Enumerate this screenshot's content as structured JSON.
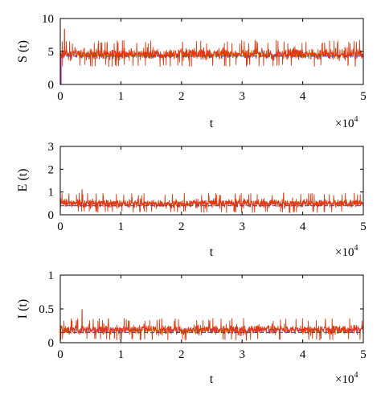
{
  "chart_data": [
    {
      "type": "line",
      "ylabel": "S (t)",
      "xlabel": "t",
      "x_multiplier": "×10",
      "x_multiplier_exp": "4",
      "xlim": [
        0,
        50000
      ],
      "ylim": [
        0,
        10
      ],
      "xticks": [
        0,
        1,
        2,
        3,
        4,
        5
      ],
      "yticks": [
        0,
        5,
        10
      ],
      "series": [
        {
          "style": "stochastic-noise",
          "mean": 4.4,
          "typical_min": 3.0,
          "typical_max": 6.2,
          "peak": 8.4,
          "peak_at": 700,
          "color": "#e03a12"
        },
        {
          "style": "dashed",
          "value": 4.3,
          "color": "#3a4fd6"
        }
      ],
      "start_marker": {
        "x": 0,
        "value_range": [
          0,
          4.3
        ],
        "color": "#cc33cc"
      }
    },
    {
      "type": "line",
      "ylabel": "E (t)",
      "xlabel": "t",
      "x_multiplier": "×10",
      "x_multiplier_exp": "4",
      "xlim": [
        0,
        50000
      ],
      "ylim": [
        0,
        3
      ],
      "xticks": [
        0,
        1,
        2,
        3,
        4,
        5
      ],
      "yticks": [
        0,
        1,
        2,
        3
      ],
      "series": [
        {
          "style": "stochastic-noise",
          "mean": 0.42,
          "typical_min": 0.15,
          "typical_max": 0.85,
          "peak": 1.1,
          "peak_at": 3600,
          "color": "#e03a12"
        },
        {
          "style": "dashed",
          "value": 0.4,
          "color": "#3a4fd6"
        }
      ]
    },
    {
      "type": "line",
      "ylabel": "I (t)",
      "xlabel": "t",
      "x_multiplier": "×10",
      "x_multiplier_exp": "4",
      "xlim": [
        0,
        50000
      ],
      "ylim": [
        0,
        1
      ],
      "xticks": [
        0,
        1,
        2,
        3,
        4,
        5
      ],
      "yticks": [
        0,
        0.5,
        1
      ],
      "ytick_labels": [
        "0",
        "0.5",
        "1"
      ],
      "series": [
        {
          "style": "stochastic-noise",
          "mean": 0.17,
          "typical_min": 0.06,
          "typical_max": 0.32,
          "peak": 0.49,
          "peak_at": 3600,
          "color": "#e03a12"
        },
        {
          "style": "dashed",
          "value": 0.15,
          "color": "#3a4fd6"
        }
      ]
    }
  ]
}
